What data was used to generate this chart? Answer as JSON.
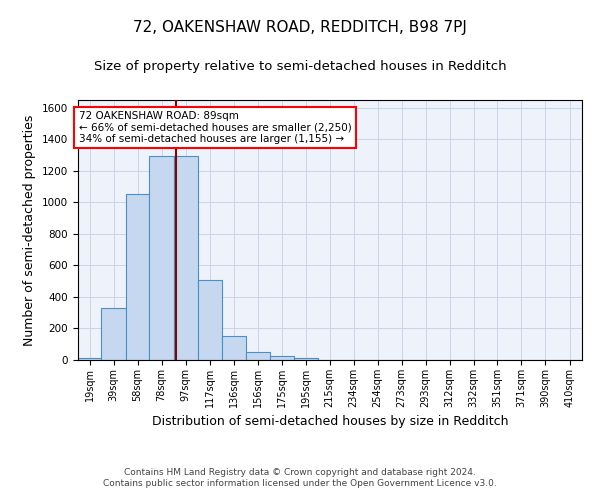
{
  "title": "72, OAKENSHAW ROAD, REDDITCH, B98 7PJ",
  "subtitle": "Size of property relative to semi-detached houses in Redditch",
  "xlabel": "Distribution of semi-detached houses by size in Redditch",
  "ylabel": "Number of semi-detached properties",
  "bin_labels": [
    "19sqm",
    "39sqm",
    "58sqm",
    "78sqm",
    "97sqm",
    "117sqm",
    "136sqm",
    "156sqm",
    "175sqm",
    "195sqm",
    "215sqm",
    "234sqm",
    "254sqm",
    "273sqm",
    "293sqm",
    "312sqm",
    "332sqm",
    "351sqm",
    "371sqm",
    "390sqm",
    "410sqm"
  ],
  "bin_edges": [
    9.5,
    28.5,
    48.5,
    67.5,
    87.5,
    107,
    126.5,
    146,
    165.5,
    185,
    204.5,
    224,
    243.5,
    263,
    282.5,
    302,
    321.5,
    341,
    360.5,
    380,
    399.5,
    419.5
  ],
  "bar_heights": [
    15,
    330,
    1055,
    1295,
    1295,
    510,
    155,
    50,
    25,
    12,
    0,
    0,
    0,
    0,
    0,
    0,
    0,
    0,
    0,
    0,
    0
  ],
  "bar_color": "#c5d8f0",
  "bar_edge_color": "#4a90c4",
  "property_size": 89,
  "vline_color": "#8b0000",
  "ylim": [
    0,
    1650
  ],
  "yticks": [
    0,
    200,
    400,
    600,
    800,
    1000,
    1200,
    1400,
    1600
  ],
  "annotation_text": "72 OAKENSHAW ROAD: 89sqm\n← 66% of semi-detached houses are smaller (2,250)\n34% of semi-detached houses are larger (1,155) →",
  "annotation_box_color": "white",
  "annotation_box_edge": "red",
  "footer_line1": "Contains HM Land Registry data © Crown copyright and database right 2024.",
  "footer_line2": "Contains public sector information licensed under the Open Government Licence v3.0.",
  "bg_color": "#eef2fa",
  "grid_color": "#c8d4e8",
  "title_fontsize": 11,
  "subtitle_fontsize": 9.5,
  "axis_label_fontsize": 9,
  "tick_fontsize": 7.5,
  "footer_fontsize": 6.5
}
